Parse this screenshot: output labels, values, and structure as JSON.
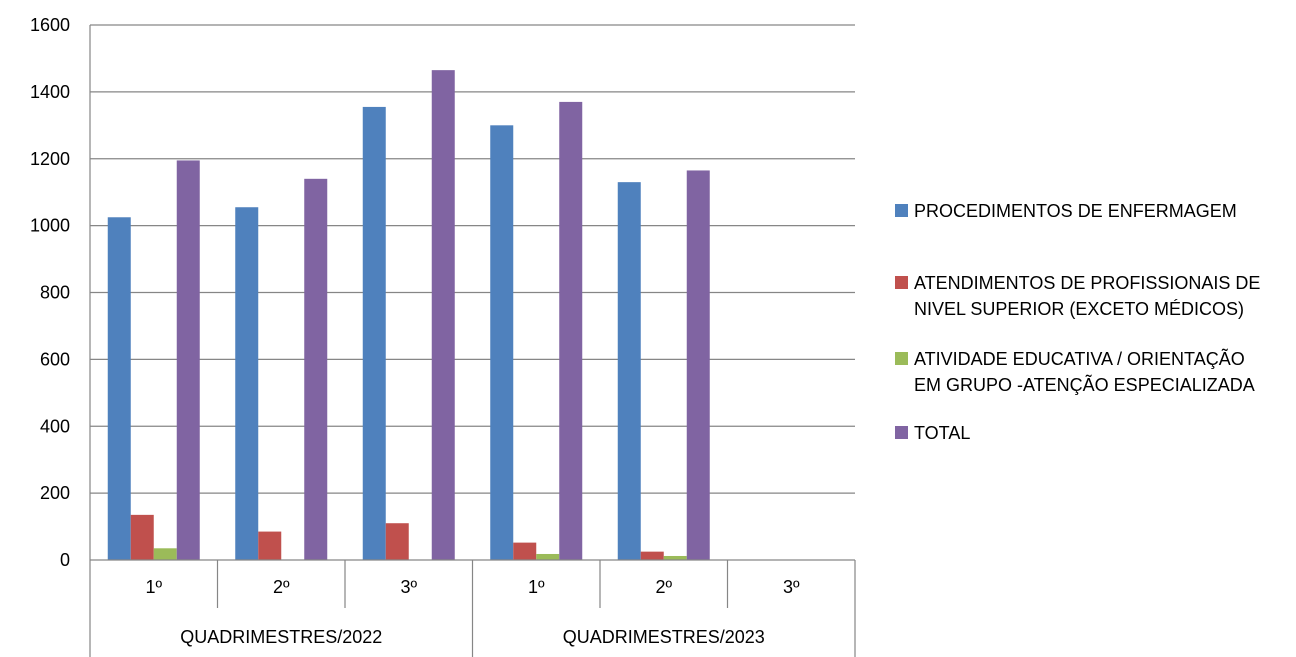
{
  "chart_data": {
    "type": "bar",
    "groups": [
      {
        "label": "QUADRIMESTRES/2022",
        "categories": [
          "1º",
          "2º",
          "3º"
        ]
      },
      {
        "label": "QUADRIMESTRES/2023",
        "categories": [
          "1º",
          "2º",
          "3º"
        ]
      }
    ],
    "categories": [
      "1º",
      "2º",
      "3º",
      "1º",
      "2º",
      "3º"
    ],
    "series": [
      {
        "name": "PROCEDIMENTOS DE ENFERMAGEM",
        "color": "#4F81BD",
        "values": [
          1025,
          1055,
          1355,
          1300,
          1130,
          null
        ]
      },
      {
        "name": "ATENDIMENTOS DE PROFISSIONAIS DE NIVEL SUPERIOR (EXCETO MÉDICOS)",
        "color": "#C0504D",
        "values": [
          135,
          85,
          110,
          52,
          25,
          null
        ]
      },
      {
        "name": "ATIVIDADE EDUCATIVA / ORIENTAÇÃO EM GRUPO -ATENÇÃO ESPECIALIZADA",
        "color": "#9BBB59",
        "values": [
          35,
          0,
          0,
          18,
          12,
          null
        ]
      },
      {
        "name": "TOTAL",
        "color": "#8064A2",
        "values": [
          1195,
          1140,
          1465,
          1370,
          1165,
          null
        ]
      }
    ],
    "yticks": [
      0,
      200,
      400,
      600,
      800,
      1000,
      1200,
      1400,
      1600
    ],
    "ylim": [
      0,
      1600
    ],
    "grid": true,
    "legend_position": "right",
    "title": "",
    "xlabel": "",
    "ylabel": ""
  },
  "legend": {
    "items": [
      {
        "label": "PROCEDIMENTOS DE ENFERMAGEM",
        "color": "#4F81BD"
      },
      {
        "label": "ATENDIMENTOS DE PROFISSIONAIS DE\nNIVEL SUPERIOR (EXCETO MÉDICOS)",
        "color": "#C0504D"
      },
      {
        "label": "ATIVIDADE EDUCATIVA / ORIENTAÇÃO\nEM GRUPO -ATENÇÃO ESPECIALIZADA",
        "color": "#9BBB59"
      },
      {
        "label": "TOTAL",
        "color": "#8064A2"
      }
    ]
  }
}
